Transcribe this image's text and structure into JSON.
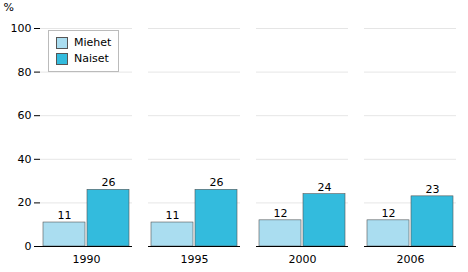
{
  "chart_data": {
    "type": "bar",
    "categories": [
      "1990",
      "1995",
      "2000",
      "2006"
    ],
    "series": [
      {
        "name": "Miehet",
        "color": "#aaddf0",
        "values": [
          11,
          11,
          12,
          12
        ]
      },
      {
        "name": "Naiset",
        "color": "#33bbdd",
        "values": [
          26,
          26,
          24,
          23
        ]
      }
    ],
    "ylabel": "%",
    "ylim": [
      0,
      100
    ],
    "yticks": [
      0,
      20,
      40,
      60,
      80,
      100
    ],
    "grid": true,
    "legend": "upper left",
    "data_labels": true
  }
}
